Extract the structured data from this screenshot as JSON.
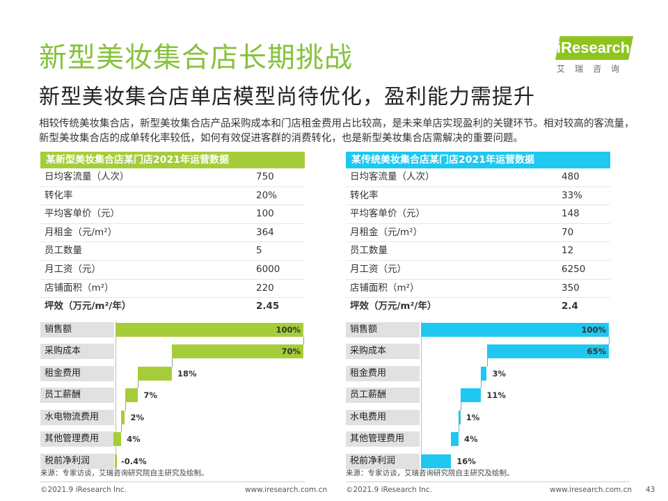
{
  "title": "新型美妆集合店长期挑战",
  "subtitle": "新型美妆集合店单店模型尚待优化，盈利能力需提升",
  "logo": {
    "text": "iResearch",
    "cn": "艾瑞咨询"
  },
  "intro": "相较传统美妆集合店，新型美妆集合店产品采购成本和门店租金费用占比较高，是未来单店实现盈利的关键环节。相对较高的客流量，新型美妆集合店的成单转化率较低，如何有效促进客群的消费转化，也是新型美妆集合店需解决的重要问题。",
  "colors": {
    "green": "#a5cd39",
    "cyan": "#1ec8f0",
    "title_green": "#86c23c"
  },
  "left": {
    "header": "某新型美妆集合店某门店2021年运营数据",
    "rows": [
      {
        "k": "日均客流量（人次）",
        "v": "750"
      },
      {
        "k": "转化率",
        "v": "20%"
      },
      {
        "k": "平均客单价（元）",
        "v": "100"
      },
      {
        "k": "月租金（元/m²）",
        "v": "364"
      },
      {
        "k": "员工数量",
        "v": "5"
      },
      {
        "k": "月工资（元）",
        "v": "6000"
      },
      {
        "k": "店铺面积（m²）",
        "v": "220"
      },
      {
        "k": "坪效（万元/m²/年）",
        "v": "2.45"
      }
    ],
    "source": "来源：专家访谈，艾瑞咨询研究院自主研究及绘制。",
    "footer_left": "©2021.9 iResearch Inc.",
    "footer_right": "www.iresearch.com.cn"
  },
  "right": {
    "header": "某传统美妆集合店某门店2021年运营数据",
    "rows": [
      {
        "k": "日均客流量（人次）",
        "v": "480"
      },
      {
        "k": "转化率",
        "v": "33%"
      },
      {
        "k": "平均客单价（元）",
        "v": "148"
      },
      {
        "k": "月租金（元/m²）",
        "v": "70"
      },
      {
        "k": "员工数量",
        "v": "12"
      },
      {
        "k": "月工资（元）",
        "v": "6250"
      },
      {
        "k": "店铺面积（m²）",
        "v": "350"
      },
      {
        "k": "坪效（万元/m²/年）",
        "v": "2.4"
      }
    ],
    "source": "来源：专家访谈，艾瑞咨询研究院自主研究及绘制。",
    "footer_left": "©2021.9 iResearch Inc.",
    "footer_right": "www.iresearch.com.cn",
    "page_number": "43"
  },
  "chart_data": [
    {
      "type": "bar",
      "subtype": "waterfall",
      "categories": [
        "销售额",
        "采购成本",
        "租金费用",
        "员工薪酬",
        "水电物流费用",
        "其他管理费用",
        "税前净利润"
      ],
      "values": [
        100,
        70,
        18,
        7,
        2,
        4,
        -0.4
      ],
      "labels": [
        "100%",
        "70%",
        "18%",
        "7%",
        "2%",
        "4%",
        "-0.4%"
      ],
      "color": "#a5cd39"
    },
    {
      "type": "bar",
      "subtype": "waterfall",
      "categories": [
        "销售额",
        "采购成本",
        "租金费用",
        "员工薪酬",
        "水电费用",
        "其他管理费用",
        "税前净利润"
      ],
      "values": [
        100,
        65,
        3,
        11,
        1,
        4,
        16
      ],
      "labels": [
        "100%",
        "65%",
        "3%",
        "11%",
        "1%",
        "4%",
        "16%"
      ],
      "color": "#1ec8f0"
    }
  ]
}
